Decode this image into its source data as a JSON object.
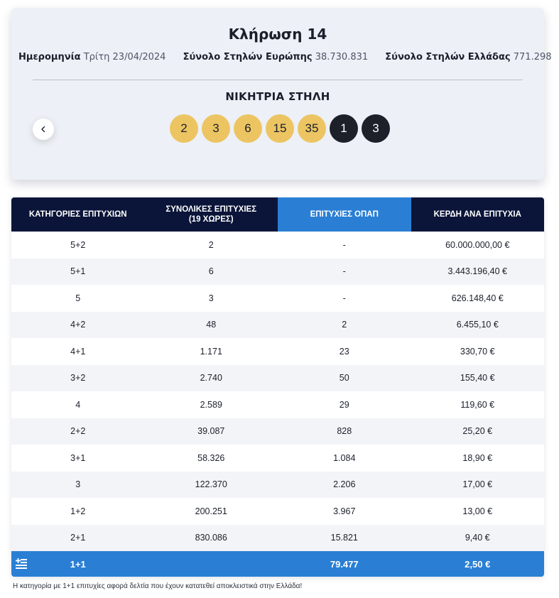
{
  "draw": {
    "title": "Κλήρωση 14",
    "date_label": "Ημερομηνία",
    "date_value": "Τρίτη 23/04/2024",
    "europe_label": "Σύνολο Στηλών Ευρώπης",
    "europe_value": "38.730.831",
    "greece_label": "Σύνολο Στηλών Ελλάδας",
    "greece_value": "771.298",
    "winning_heading": "ΝΙΚΗΤΡΙΑ ΣΤΗΛΗ",
    "main_numbers": [
      "2",
      "3",
      "6",
      "15",
      "35"
    ],
    "star_numbers": [
      "1",
      "3"
    ],
    "colors": {
      "main_ball": "#ecc562",
      "star_ball": "#1d2029"
    }
  },
  "table": {
    "headers": {
      "category": "ΚΑΤΗΓΟΡΙΕΣ ΕΠΙΤΥΧΙΩΝ",
      "total_wins_line1": "ΣΥΝΟΛΙΚΕΣ ΕΠΙΤΥΧΙΕΣ",
      "total_wins_line2": "(19 ΧΩΡΕΣ)",
      "opap_wins": "ΕΠΙΤΥΧΙΕΣ ΟΠΑΠ",
      "prize": "ΚΕΡΔΗ ΑΝΑ ΕΠΙΤΥΧΙΑ"
    },
    "rows": [
      [
        "5+2",
        "2",
        "-",
        "60.000.000,00 €"
      ],
      [
        "5+1",
        "6",
        "-",
        "3.443.196,40 €"
      ],
      [
        "5",
        "3",
        "-",
        "626.148,40 €"
      ],
      [
        "4+2",
        "48",
        "2",
        "6.455,10 €"
      ],
      [
        "4+1",
        "1.171",
        "23",
        "330,70 €"
      ],
      [
        "3+2",
        "2.740",
        "50",
        "155,40 €"
      ],
      [
        "4",
        "2.589",
        "29",
        "119,60 €"
      ],
      [
        "2+2",
        "39.087",
        "828",
        "25,20 €"
      ],
      [
        "3+1",
        "58.326",
        "1.084",
        "18,90 €"
      ],
      [
        "3",
        "122.370",
        "2.206",
        "17,00 €"
      ],
      [
        "1+2",
        "200.251",
        "3.967",
        "13,00 €"
      ],
      [
        "2+1",
        "830.086",
        "15.821",
        "9,40 €"
      ]
    ],
    "total_row": {
      "icon": "greek-flag-icon",
      "category": "1+1",
      "total_wins": "",
      "opap_wins": "79.477",
      "prize": "2,50 €"
    },
    "colors": {
      "header_bg": "#0b1539",
      "opap_header_bg": "#2a7fd4",
      "total_row_bg": "#2a7fd4"
    }
  },
  "footnote": "Η κατηγορία με 1+1 επιτυχίες αφορά δελτία που έχουν κατατεθεί αποκλειστικά στην Ελλάδα!"
}
